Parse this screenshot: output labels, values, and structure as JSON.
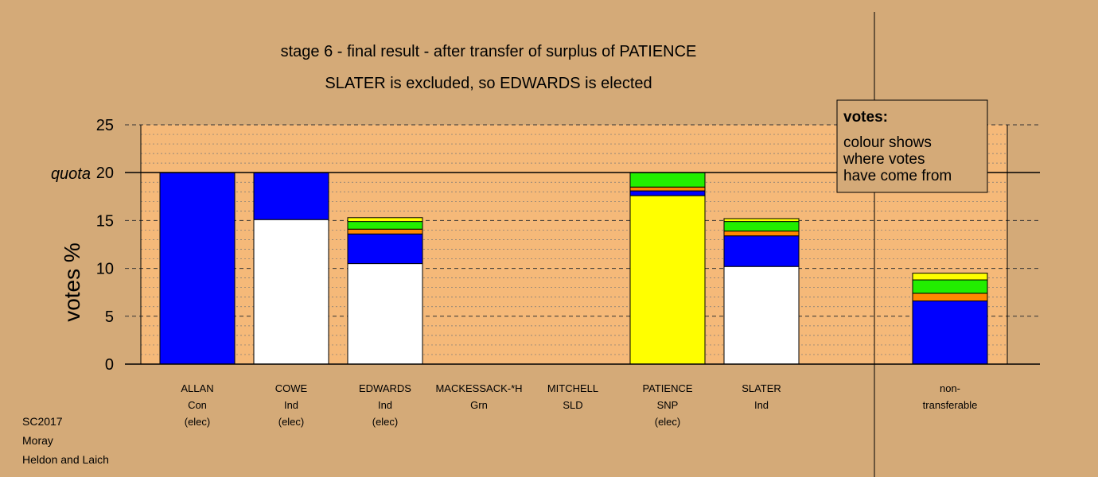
{
  "chart_data": {
    "type": "bar",
    "stacked": true,
    "title": "stage 6 - final result - after transfer of surplus of PATIENCE",
    "subtitle": "SLATER is excluded, so EDWARDS is elected",
    "ylabel": "votes %",
    "ylim": [
      0,
      25
    ],
    "yticks": [
      0,
      5,
      10,
      15,
      20,
      25
    ],
    "quota": 20,
    "quota_label": "quota",
    "grid": true,
    "legend": {
      "title": "votes:",
      "lines": [
        "colour shows",
        "where votes",
        "have come from"
      ]
    },
    "categories": [
      {
        "lines": [
          "ALLAN",
          "Con",
          "(elec)"
        ]
      },
      {
        "lines": [
          "COWE",
          "Ind",
          "(elec)"
        ]
      },
      {
        "lines": [
          "EDWARDS",
          "Ind",
          "(elec)"
        ]
      },
      {
        "lines": [
          "MACKESSACK-*H",
          "Grn",
          ""
        ]
      },
      {
        "lines": [
          "MITCHELL",
          "SLD",
          ""
        ]
      },
      {
        "lines": [
          "PATIENCE",
          "SNP",
          "(elec)"
        ]
      },
      {
        "lines": [
          "SLATER",
          "Ind",
          ""
        ]
      },
      {
        "lines": [
          "non-",
          "transferable",
          ""
        ]
      }
    ],
    "segments": [
      [
        {
          "value": 20.0,
          "color": "#0000ff"
        }
      ],
      [
        {
          "value": 15.1,
          "color": "#ffffff"
        },
        {
          "value": 4.9,
          "color": "#0000ff"
        }
      ],
      [
        {
          "value": 10.5,
          "color": "#ffffff"
        },
        {
          "value": 3.1,
          "color": "#0000ff"
        },
        {
          "value": 0.5,
          "color": "#ff8800"
        },
        {
          "value": 0.8,
          "color": "#22ee00"
        },
        {
          "value": 0.4,
          "color": "#ffff00"
        }
      ],
      [],
      [],
      [
        {
          "value": 17.6,
          "color": "#ffff00"
        },
        {
          "value": 0.5,
          "color": "#0000ff"
        },
        {
          "value": 0.4,
          "color": "#ff8800"
        },
        {
          "value": 1.5,
          "color": "#22ee00"
        }
      ],
      [
        {
          "value": 10.2,
          "color": "#ffffff"
        },
        {
          "value": 3.2,
          "color": "#0000ff"
        },
        {
          "value": 0.5,
          "color": "#ff8800"
        },
        {
          "value": 1.0,
          "color": "#22ee00"
        },
        {
          "value": 0.3,
          "color": "#ffff00"
        }
      ],
      [
        {
          "value": 6.6,
          "color": "#0000ff"
        },
        {
          "value": 0.8,
          "color": "#ff8800"
        },
        {
          "value": 1.4,
          "color": "#22ee00"
        },
        {
          "value": 0.7,
          "color": "#ffff00"
        }
      ]
    ]
  },
  "footer": [
    "SC2017",
    "Moray",
    "Heldon and Laich"
  ],
  "colors": {
    "background": "#d4aa78",
    "plot_area": "#f5b979",
    "legend_box": "#d4aa78"
  }
}
